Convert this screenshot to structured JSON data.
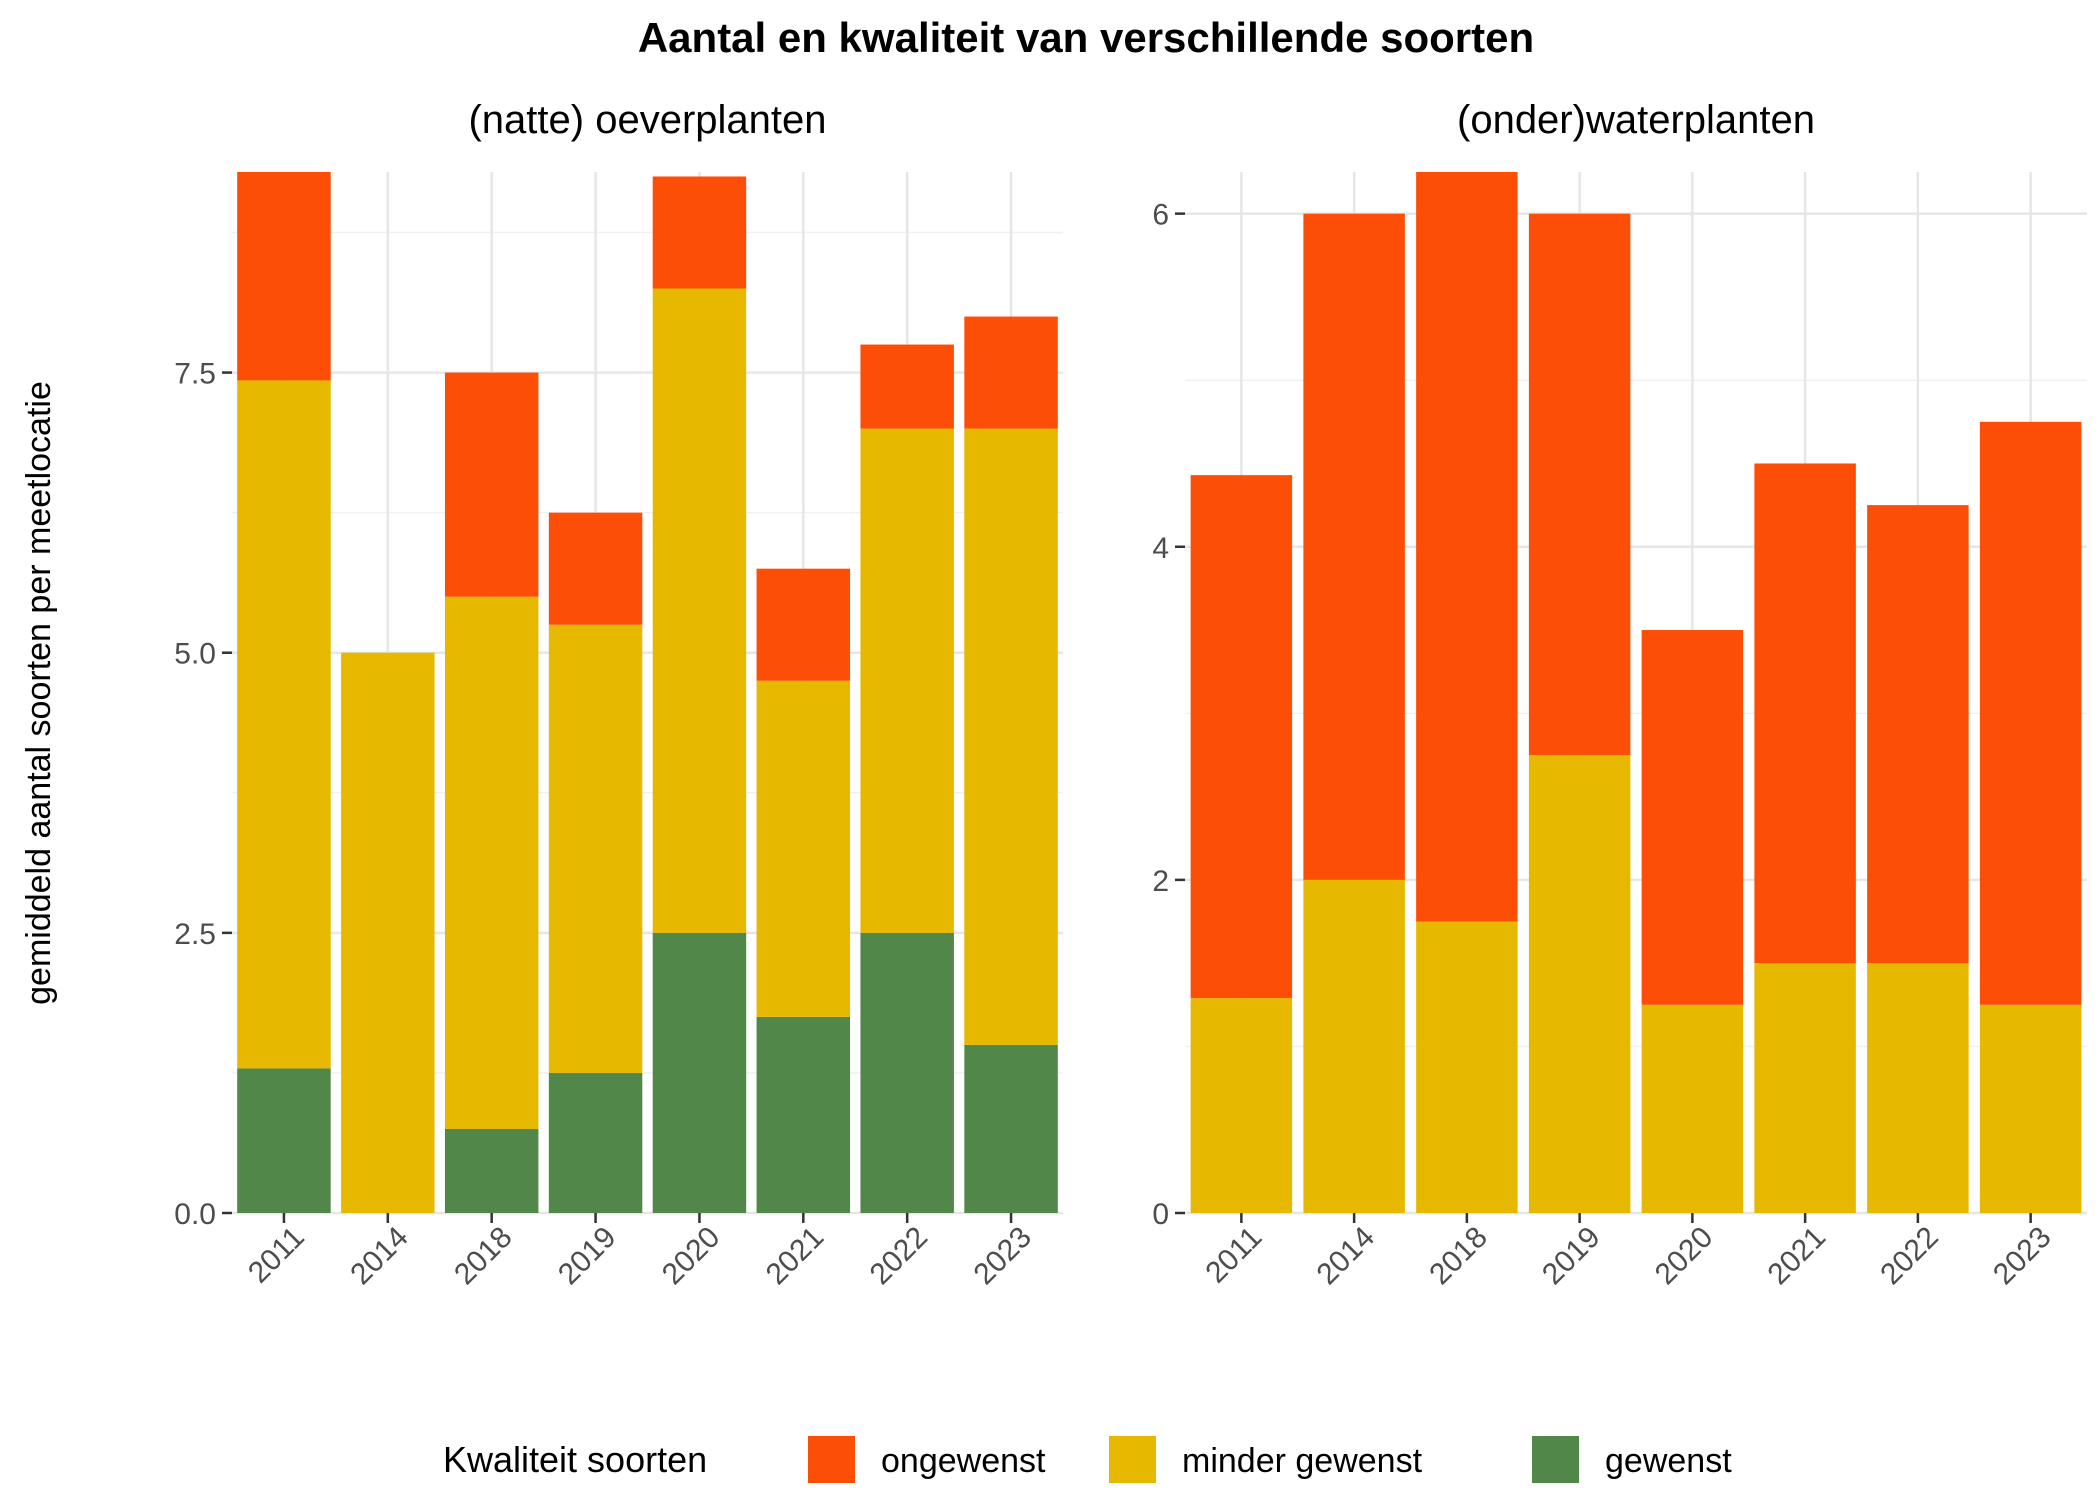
{
  "chart_data": {
    "title": "Aantal en kwaliteit van verschillende soorten",
    "ylabel": "gemiddeld aantal soorten per meetlocatie",
    "legend": {
      "title": "Kwaliteit soorten",
      "position": "bottom",
      "entries": [
        "ongewenst",
        "minder gewenst",
        "gewenst"
      ]
    },
    "colors": {
      "ongewenst": "#FC4E07",
      "minder gewenst": "#E7B800",
      "gewenst": "#52874A"
    },
    "grid": true,
    "panels": [
      {
        "type": "bar",
        "stacked": true,
        "subtitle": "(natte) oeverplanten",
        "categories": [
          "2011",
          "2014",
          "2018",
          "2019",
          "2020",
          "2021",
          "2022",
          "2023"
        ],
        "ylim": [
          0,
          9.29
        ],
        "yticks": [
          0,
          2.5,
          5,
          7.5
        ],
        "ytick_labels": [
          "0.0",
          "2.5",
          "5.0",
          "7.5"
        ],
        "series": [
          {
            "name": "gewenst",
            "values": [
              1.29,
              0,
              0.75,
              1.25,
              2.5,
              1.75,
              2.5,
              1.5
            ]
          },
          {
            "name": "minder gewenst",
            "values": [
              6.14,
              5,
              4.75,
              4,
              5.75,
              3,
              4.5,
              5.5
            ]
          },
          {
            "name": "ongewenst",
            "values": [
              1.86,
              0,
              2,
              1,
              1,
              1,
              0.75,
              1
            ]
          }
        ]
      },
      {
        "type": "bar",
        "stacked": true,
        "subtitle": "(onder)waterplanten",
        "categories": [
          "2011",
          "2014",
          "2018",
          "2019",
          "2020",
          "2021",
          "2022",
          "2023"
        ],
        "ylim": [
          0,
          6.25
        ],
        "yticks": [
          0,
          2,
          4,
          6
        ],
        "ytick_labels": [
          "0",
          "2",
          "4",
          "6"
        ],
        "series": [
          {
            "name": "gewenst",
            "values": [
              0,
              0,
              0,
              0,
              0,
              0,
              0,
              0
            ]
          },
          {
            "name": "minder gewenst",
            "values": [
              1.29,
              2,
              1.75,
              2.75,
              1.25,
              1.5,
              1.5,
              1.25
            ]
          },
          {
            "name": "ongewenst",
            "values": [
              3.14,
              4,
              4.5,
              3.25,
              2.25,
              3,
              2.75,
              3.5
            ]
          }
        ]
      }
    ]
  }
}
